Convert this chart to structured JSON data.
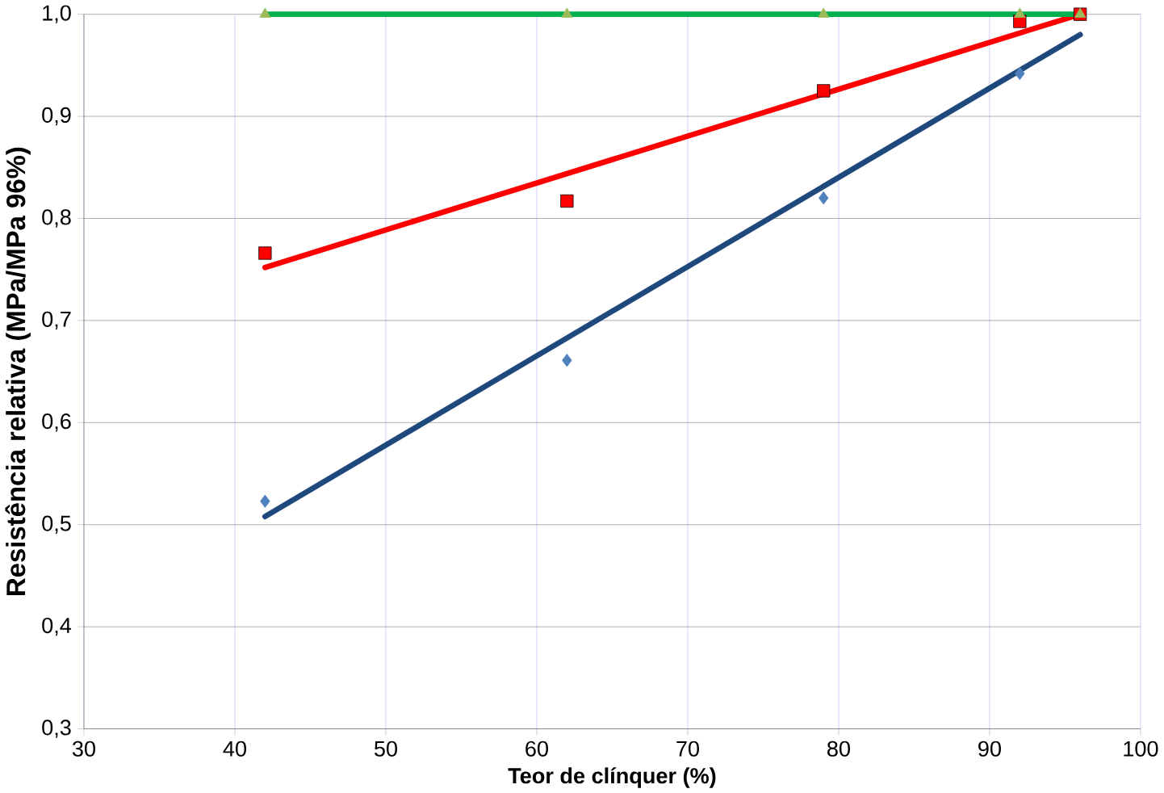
{
  "chart_data": {
    "type": "scatter",
    "xlabel": "Teor de clínquer (%)",
    "ylabel": "Resistência relativa (MPa/MPa 96%)",
    "xlim": [
      30,
      100
    ],
    "ylim": [
      0.3,
      1.0
    ],
    "xticks": [
      30,
      40,
      50,
      60,
      70,
      80,
      90,
      100
    ],
    "yticks": [
      {
        "value": 0.3,
        "label": "0,3"
      },
      {
        "value": 0.4,
        "label": "0,4"
      },
      {
        "value": 0.5,
        "label": "0,5"
      },
      {
        "value": 0.6,
        "label": "0,6"
      },
      {
        "value": 0.7,
        "label": "0,7"
      },
      {
        "value": 0.8,
        "label": "0,8"
      },
      {
        "value": 0.9,
        "label": "0,9"
      },
      {
        "value": 1.0,
        "label": "1,0"
      }
    ],
    "grid": true,
    "series": [
      {
        "type": "line",
        "marker": "none",
        "color": "#1f497d",
        "x": [
          42,
          96
        ],
        "values": [
          0.508,
          0.98
        ]
      },
      {
        "type": "line",
        "marker": "none",
        "color": "#ff0000",
        "x": [
          42,
          96
        ],
        "values": [
          0.752,
          1.0
        ]
      },
      {
        "type": "line",
        "marker": "none",
        "color": "#00b050",
        "x": [
          42,
          96
        ],
        "values": [
          1.0,
          1.0
        ]
      },
      {
        "marker": "diamond",
        "color": "#4f81bd",
        "x": [
          42,
          62,
          79,
          92
        ],
        "values": [
          0.523,
          0.661,
          0.82,
          0.942
        ]
      },
      {
        "marker": "square",
        "color": "#ff0000",
        "x": [
          42,
          62,
          79,
          92,
          96
        ],
        "values": [
          0.766,
          0.817,
          0.925,
          0.993,
          1.0
        ]
      },
      {
        "marker": "triangle",
        "color": "#9bbb59",
        "x": [
          42,
          62,
          79,
          92,
          96
        ],
        "values": [
          1.0,
          1.0,
          1.0,
          1.0,
          1.0
        ]
      }
    ]
  }
}
